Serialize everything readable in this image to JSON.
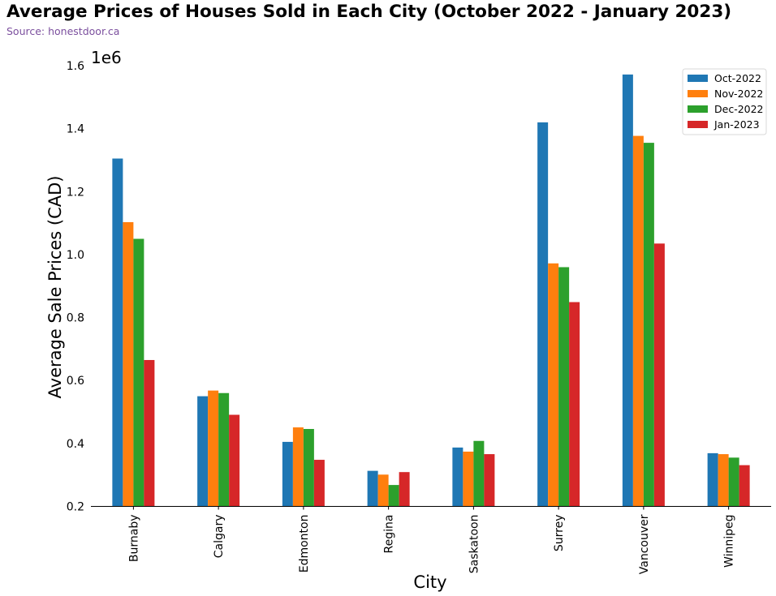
{
  "header": {
    "title": "Average Prices of Houses Sold in Each City (October 2022 - January 2023)",
    "source": "Source: honestdoor.ca"
  },
  "colors": {
    "title": "#000000",
    "source": "#7b4f9e",
    "series": [
      "#1f77b4",
      "#ff7f0e",
      "#2ca02c",
      "#d62728"
    ]
  },
  "chart_data": {
    "type": "bar",
    "title": "Average Prices of Houses Sold in Each City (October 2022 - January 2023)",
    "subtitle": "Source: honestdoor.ca",
    "xlabel": "City",
    "ylabel": "Average Sale Prices (CAD)",
    "y_offset_label": "1e6",
    "ylim": [
      200000,
      1600000
    ],
    "yticks": [
      200000,
      400000,
      600000,
      800000,
      1000000,
      1200000,
      1400000,
      1600000
    ],
    "ytick_labels": [
      "0.2",
      "0.4",
      "0.6",
      "0.8",
      "1.0",
      "1.2",
      "1.4",
      "1.6"
    ],
    "categories": [
      "Burnaby",
      "Calgary",
      "Edmonton",
      "Regina",
      "Saskatoon",
      "Surrey",
      "Vancouver",
      "Winnipeg"
    ],
    "series": [
      {
        "name": "Oct-2022",
        "color": "#1f77b4",
        "values": [
          1305000,
          550000,
          405000,
          313000,
          387000,
          1420000,
          1572000,
          369000
        ]
      },
      {
        "name": "Nov-2022",
        "color": "#ff7f0e",
        "values": [
          1103000,
          568000,
          451000,
          301000,
          374000,
          972000,
          1377000,
          366000
        ]
      },
      {
        "name": "Dec-2022",
        "color": "#2ca02c",
        "values": [
          1050000,
          560000,
          446000,
          268000,
          408000,
          960000,
          1355000,
          355000
        ]
      },
      {
        "name": "Jan-2023",
        "color": "#d62728",
        "values": [
          665000,
          491000,
          348000,
          309000,
          366000,
          849000,
          1035000,
          331000
        ]
      }
    ],
    "grid": false,
    "legend_position": "top-right"
  }
}
